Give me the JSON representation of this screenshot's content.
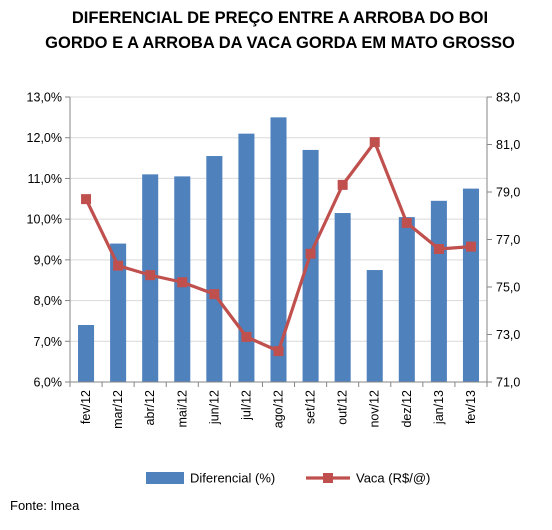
{
  "chart_data": {
    "type": "bar",
    "title": "DIFERENCIAL DE PREÇO ENTRE A ARROBA DO BOI GORDO E A ARROBA DA VACA GORDA EM MATO GROSSO",
    "categories": [
      "fev/12",
      "mar/12",
      "abr/12",
      "mai/12",
      "jun/12",
      "jul/12",
      "ago/12",
      "set/12",
      "out/12",
      "nov/12",
      "dez/12",
      "jan/13",
      "fev/13"
    ],
    "series": [
      {
        "name": "Diferencial (%)",
        "type": "bar",
        "axis": "left",
        "values": [
          7.4,
          9.4,
          11.1,
          11.05,
          11.55,
          12.1,
          12.5,
          11.7,
          10.15,
          8.75,
          10.05,
          10.45,
          10.75
        ]
      },
      {
        "name": "Vaca (R$/@)",
        "type": "line",
        "axis": "right",
        "values": [
          78.7,
          75.9,
          75.5,
          75.2,
          74.7,
          72.9,
          72.3,
          76.4,
          79.3,
          81.1,
          77.7,
          76.6,
          76.7
        ]
      }
    ],
    "y_left": {
      "min": 6,
      "max": 13,
      "step": 1,
      "ticks": [
        "6,0%",
        "7,0%",
        "8,0%",
        "9,0%",
        "10,0%",
        "11,0%",
        "12,0%",
        "13,0%"
      ]
    },
    "y_right": {
      "min": 71,
      "max": 83,
      "step": 2,
      "ticks": [
        "71,0",
        "73,0",
        "75,0",
        "77,0",
        "79,0",
        "81,0",
        "83,0"
      ]
    },
    "grid": true,
    "legend": "bottom",
    "colors": {
      "bar": "#4f81bd",
      "line": "#c0504d",
      "grid": "#d9d9d9",
      "axis": "#868686"
    }
  },
  "source": "Fonte: Imea"
}
